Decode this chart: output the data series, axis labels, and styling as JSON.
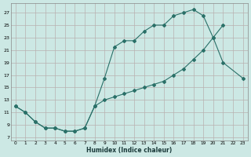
{
  "bg_color": "#cce8e4",
  "line_color": "#2a7068",
  "grid_color": "#b8b0b0",
  "xlabel": "Humidex (Indice chaleur)",
  "xlim": [
    -0.5,
    23.5
  ],
  "ylim": [
    6.5,
    28.5
  ],
  "xticks": [
    0,
    1,
    2,
    3,
    4,
    5,
    6,
    7,
    8,
    9,
    10,
    11,
    12,
    13,
    14,
    15,
    16,
    17,
    18,
    19,
    20,
    21,
    22,
    23
  ],
  "yticks": [
    7,
    9,
    11,
    13,
    15,
    17,
    19,
    21,
    23,
    25,
    27
  ],
  "line1_x": [
    0,
    1,
    2,
    3,
    4,
    5,
    6,
    7,
    8,
    9,
    10,
    11,
    12,
    13,
    14,
    15,
    16,
    17,
    18,
    19,
    20,
    21,
    23
  ],
  "line1_y": [
    12,
    11,
    9.5,
    8.5,
    8.5,
    8,
    8,
    8.5,
    12,
    16.5,
    21.5,
    22.5,
    22.5,
    24,
    25,
    25,
    26.5,
    27,
    27.5,
    26.5,
    23,
    19,
    16.5
  ],
  "line2_x": [
    0,
    1,
    2,
    3,
    4,
    5,
    6,
    7,
    8,
    9,
    10,
    11,
    12,
    13,
    14,
    15,
    16,
    17,
    18,
    19,
    20,
    21
  ],
  "line2_y": [
    12,
    11,
    9.5,
    8.5,
    8.5,
    8,
    8,
    8.5,
    12,
    13,
    13.5,
    14,
    14.5,
    15,
    15.5,
    16,
    17,
    18,
    19.5,
    21,
    23,
    25
  ]
}
